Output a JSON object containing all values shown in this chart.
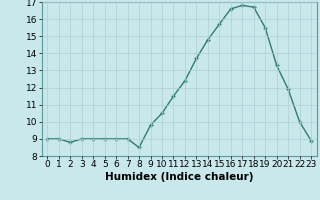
{
  "x": [
    0,
    1,
    2,
    3,
    4,
    5,
    6,
    7,
    8,
    9,
    10,
    11,
    12,
    13,
    14,
    15,
    16,
    17,
    18,
    19,
    20,
    21,
    22,
    23
  ],
  "y": [
    9.0,
    9.0,
    8.8,
    9.0,
    9.0,
    9.0,
    9.0,
    9.0,
    8.5,
    9.8,
    10.5,
    11.5,
    12.4,
    13.7,
    14.8,
    15.7,
    16.6,
    16.8,
    16.7,
    15.5,
    13.3,
    11.9,
    10.0,
    8.9
  ],
  "line_color": "#2e7d6e",
  "marker": "+",
  "bg_color": "#c8e8ec",
  "grid_color": "#b0cfd4",
  "xlabel": "Humidex (Indice chaleur)",
  "ylim": [
    8,
    17
  ],
  "xlim": [
    -0.5,
    23.5
  ],
  "yticks": [
    8,
    9,
    10,
    11,
    12,
    13,
    14,
    15,
    16,
    17
  ],
  "xtick_labels": [
    "0",
    "1",
    "2",
    "3",
    "4",
    "5",
    "6",
    "7",
    "8",
    "9",
    "10",
    "11",
    "12",
    "13",
    "14",
    "15",
    "16",
    "17",
    "18",
    "19",
    "20",
    "21",
    "22",
    "23"
  ],
  "label_fontsize": 7.5,
  "tick_fontsize": 6.5
}
